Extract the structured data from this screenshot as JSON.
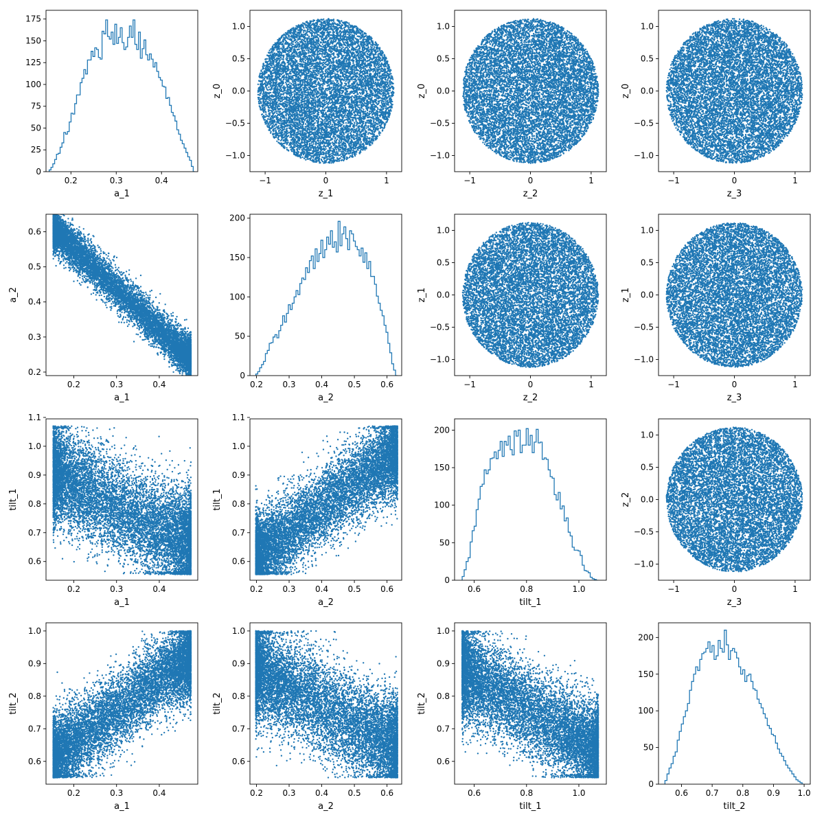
{
  "figure": {
    "grid_rows": 4,
    "grid_cols": 4,
    "marker_color": "#1f77b4",
    "axes_color": "#000000",
    "background": "#ffffff"
  },
  "chart_data": [
    {
      "type": "histogram",
      "row": 0,
      "col": 0,
      "xlabel": "a_1",
      "ylabel": "",
      "xlim": [
        0.145,
        0.48
      ],
      "ylim": [
        0,
        185
      ],
      "xticks": [
        0.2,
        0.3,
        0.4
      ],
      "xticklabels": [
        "0.2",
        "0.3",
        "0.4"
      ],
      "yticks": [
        0,
        25,
        50,
        75,
        100,
        125,
        150,
        175
      ],
      "yticklabels": [
        "0",
        "25",
        "50",
        "75",
        "100",
        "125",
        "150",
        "175"
      ],
      "bin_range": [
        0.152,
        0.474
      ],
      "counts": [
        2,
        5,
        9,
        14,
        20,
        21,
        28,
        33,
        45,
        43,
        46,
        57,
        67,
        66,
        78,
        88,
        88,
        102,
        107,
        117,
        112,
        128,
        128,
        138,
        132,
        142,
        140,
        131,
        129,
        161,
        158,
        174,
        155,
        152,
        160,
        146,
        169,
        147,
        154,
        165,
        148,
        140,
        143,
        154,
        167,
        154,
        174,
        146,
        140,
        160,
        130,
        141,
        151,
        134,
        128,
        135,
        129,
        120,
        125,
        115,
        108,
        105,
        98,
        97,
        84,
        85,
        76,
        68,
        64,
        58,
        48,
        43,
        36,
        32,
        27,
        22,
        17,
        13,
        6,
        0
      ]
    },
    {
      "type": "scatter",
      "row": 0,
      "col": 1,
      "xlabel": "z_1",
      "ylabel": "z_0",
      "xlim": [
        -1.25,
        1.25
      ],
      "ylim": [
        -1.25,
        1.25
      ],
      "xticks": [
        -1,
        0,
        1
      ],
      "xticklabels": [
        "−1",
        "0",
        "1"
      ],
      "yticks": [
        -1,
        -0.5,
        0,
        0.5,
        1
      ],
      "yticklabels": [
        "−1.0",
        "−0.5",
        "0.0",
        "0.5",
        "1.0"
      ],
      "n_points": 10000,
      "distribution": "uniform disk",
      "center": [
        0,
        0
      ],
      "radius": 1.12
    },
    {
      "type": "scatter",
      "row": 0,
      "col": 2,
      "xlabel": "z_2",
      "ylabel": "z_0",
      "xlim": [
        -1.25,
        1.25
      ],
      "ylim": [
        -1.25,
        1.25
      ],
      "xticks": [
        -1,
        0,
        1
      ],
      "xticklabels": [
        "−1",
        "0",
        "1"
      ],
      "yticks": [
        -1,
        -0.5,
        0,
        0.5,
        1
      ],
      "yticklabels": [
        "−1.0",
        "−0.5",
        "0.0",
        "0.5",
        "1.0"
      ],
      "n_points": 10000,
      "distribution": "uniform disk",
      "center": [
        0,
        0
      ],
      "radius": 1.12
    },
    {
      "type": "scatter",
      "row": 0,
      "col": 3,
      "xlabel": "z_3",
      "ylabel": "z_0",
      "xlim": [
        -1.25,
        1.25
      ],
      "ylim": [
        -1.25,
        1.25
      ],
      "xticks": [
        -1,
        0,
        1
      ],
      "xticklabels": [
        "−1",
        "0",
        "1"
      ],
      "yticks": [
        -1,
        -0.5,
        0,
        0.5,
        1
      ],
      "yticklabels": [
        "−1.0",
        "−0.5",
        "0.0",
        "0.5",
        "1.0"
      ],
      "n_points": 10000,
      "distribution": "uniform disk",
      "center": [
        0,
        0
      ],
      "radius": 1.12
    },
    {
      "type": "scatter",
      "row": 1,
      "col": 0,
      "xlabel": "a_1",
      "ylabel": "a_2",
      "xlim": [
        0.135,
        0.49
      ],
      "ylim": [
        0.19,
        0.65
      ],
      "xticks": [
        0.2,
        0.3,
        0.4
      ],
      "xticklabels": [
        "0.2",
        "0.3",
        "0.4"
      ],
      "yticks": [
        0.2,
        0.3,
        0.4,
        0.5,
        0.6
      ],
      "yticklabels": [
        "0.2",
        "0.3",
        "0.4",
        "0.5",
        "0.6"
      ],
      "n_points": 10000,
      "distribution": "narrow negative band",
      "x_range": [
        0.152,
        0.474
      ],
      "trend": [
        [
          0.16,
          0.6
        ],
        [
          0.47,
          0.24
        ]
      ],
      "spread": 0.028
    },
    {
      "type": "histogram",
      "row": 1,
      "col": 1,
      "xlabel": "a_2",
      "ylabel": "",
      "xlim": [
        0.18,
        0.645
      ],
      "ylim": [
        0,
        205
      ],
      "xticks": [
        0.2,
        0.3,
        0.4,
        0.5,
        0.6
      ],
      "xticklabels": [
        "0.2",
        "0.3",
        "0.4",
        "0.5",
        "0.6"
      ],
      "yticks": [
        0,
        50,
        100,
        150,
        200
      ],
      "yticklabels": [
        "0",
        "50",
        "100",
        "150",
        "200"
      ],
      "bin_range": [
        0.198,
        0.632
      ],
      "counts": [
        2,
        5,
        10,
        14,
        18,
        28,
        32,
        41,
        42,
        49,
        52,
        48,
        57,
        64,
        76,
        68,
        79,
        90,
        84,
        92,
        100,
        108,
        103,
        117,
        124,
        122,
        137,
        131,
        146,
        152,
        136,
        161,
        145,
        155,
        172,
        150,
        160,
        176,
        167,
        184,
        163,
        170,
        157,
        196,
        165,
        180,
        189,
        174,
        160,
        184,
        180,
        171,
        164,
        160,
        152,
        162,
        144,
        156,
        136,
        145,
        126,
        126,
        116,
        101,
        92,
        83,
        76,
        64,
        55,
        41,
        29,
        15,
        7,
        0
      ]
    },
    {
      "type": "scatter",
      "row": 1,
      "col": 2,
      "xlabel": "z_2",
      "ylabel": "z_1",
      "xlim": [
        -1.25,
        1.25
      ],
      "ylim": [
        -1.25,
        1.25
      ],
      "xticks": [
        -1,
        0,
        1
      ],
      "xticklabels": [
        "−1",
        "0",
        "1"
      ],
      "yticks": [
        -1,
        -0.5,
        0,
        0.5,
        1
      ],
      "yticklabels": [
        "−1.0",
        "−0.5",
        "0.0",
        "0.5",
        "1.0"
      ],
      "n_points": 10000,
      "distribution": "uniform disk",
      "center": [
        0,
        0
      ],
      "radius": 1.12
    },
    {
      "type": "scatter",
      "row": 1,
      "col": 3,
      "xlabel": "z_3",
      "ylabel": "z_1",
      "xlim": [
        -1.25,
        1.25
      ],
      "ylim": [
        -1.25,
        1.25
      ],
      "xticks": [
        -1,
        0,
        1
      ],
      "xticklabels": [
        "−1",
        "0",
        "1"
      ],
      "yticks": [
        -1,
        -0.5,
        0,
        0.5,
        1
      ],
      "yticklabels": [
        "−1.0",
        "−0.5",
        "0.0",
        "0.5",
        "1.0"
      ],
      "n_points": 10000,
      "distribution": "uniform disk",
      "center": [
        0,
        0
      ],
      "radius": 1.12
    },
    {
      "type": "scatter",
      "row": 2,
      "col": 0,
      "xlabel": "a_1",
      "ylabel": "tilt_1",
      "xlim": [
        0.135,
        0.49
      ],
      "ylim": [
        0.535,
        1.095
      ],
      "xticks": [
        0.2,
        0.3,
        0.4
      ],
      "xticklabels": [
        "0.2",
        "0.3",
        "0.4"
      ],
      "yticks": [
        0.6,
        0.7,
        0.8,
        0.9,
        1.0,
        1.1
      ],
      "yticklabels": [
        "0.6",
        "0.7",
        "0.8",
        "0.9",
        "1.0",
        "1.1"
      ],
      "n_points": 10000,
      "distribution": "negative ellipse",
      "x_range": [
        0.152,
        0.474
      ],
      "trend": [
        [
          0.16,
          0.9
        ],
        [
          0.47,
          0.66
        ]
      ],
      "spread": 0.085,
      "y_clip": [
        0.555,
        1.07
      ]
    },
    {
      "type": "scatter",
      "row": 2,
      "col": 1,
      "xlabel": "a_2",
      "ylabel": "tilt_1",
      "xlim": [
        0.18,
        0.645
      ],
      "ylim": [
        0.535,
        1.095
      ],
      "xticks": [
        0.2,
        0.3,
        0.4,
        0.5,
        0.6
      ],
      "xticklabels": [
        "0.2",
        "0.3",
        "0.4",
        "0.5",
        "0.6"
      ],
      "yticks": [
        0.6,
        0.7,
        0.8,
        0.9,
        1.0,
        1.1
      ],
      "yticklabels": [
        "0.6",
        "0.7",
        "0.8",
        "0.9",
        "1.0",
        "1.1"
      ],
      "n_points": 10000,
      "distribution": "positive ellipse",
      "x_range": [
        0.198,
        0.632
      ],
      "trend": [
        [
          0.2,
          0.62
        ],
        [
          0.63,
          0.98
        ]
      ],
      "spread": 0.07,
      "y_clip": [
        0.555,
        1.07
      ]
    },
    {
      "type": "histogram",
      "row": 2,
      "col": 2,
      "xlabel": "tilt_1",
      "ylabel": "",
      "xlim": [
        0.525,
        1.105
      ],
      "ylim": [
        0,
        215
      ],
      "xticks": [
        0.6,
        0.8,
        1.0
      ],
      "xticklabels": [
        "0.6",
        "0.8",
        "1.0"
      ],
      "yticks": [
        0,
        50,
        100,
        150,
        200
      ],
      "yticklabels": [
        "0",
        "50",
        "100",
        "150",
        "200"
      ],
      "bin_range": [
        0.554,
        1.074
      ],
      "counts": [
        5,
        14,
        25,
        30,
        51,
        66,
        72,
        94,
        108,
        125,
        128,
        147,
        142,
        147,
        162,
        163,
        171,
        162,
        173,
        185,
        165,
        185,
        180,
        192,
        174,
        167,
        199,
        192,
        200,
        170,
        180,
        180,
        202,
        180,
        193,
        170,
        184,
        201,
        183,
        184,
        161,
        163,
        161,
        147,
        138,
        136,
        114,
        107,
        117,
        95,
        99,
        79,
        83,
        64,
        59,
        44,
        40,
        40,
        39,
        33,
        20,
        13,
        12,
        10,
        4,
        2,
        1,
        0
      ]
    },
    {
      "type": "scatter",
      "row": 2,
      "col": 3,
      "xlabel": "z_3",
      "ylabel": "z_2",
      "xlim": [
        -1.25,
        1.25
      ],
      "ylim": [
        -1.25,
        1.25
      ],
      "xticks": [
        -1,
        0,
        1
      ],
      "xticklabels": [
        "−1",
        "0",
        "1"
      ],
      "yticks": [
        -1,
        -0.5,
        0,
        0.5,
        1
      ],
      "yticklabels": [
        "−1.0",
        "−0.5",
        "0.0",
        "0.5",
        "1.0"
      ],
      "n_points": 10000,
      "distribution": "uniform disk",
      "center": [
        0,
        0
      ],
      "radius": 1.12
    },
    {
      "type": "scatter",
      "row": 3,
      "col": 0,
      "xlabel": "a_1",
      "ylabel": "tilt_2",
      "xlim": [
        0.135,
        0.49
      ],
      "ylim": [
        0.53,
        1.025
      ],
      "xticks": [
        0.2,
        0.3,
        0.4
      ],
      "xticklabels": [
        "0.2",
        "0.3",
        "0.4"
      ],
      "yticks": [
        0.6,
        0.7,
        0.8,
        0.9,
        1.0
      ],
      "yticklabels": [
        "0.6",
        "0.7",
        "0.8",
        "0.9",
        "1.0"
      ],
      "n_points": 10000,
      "distribution": "positive ellipse",
      "x_range": [
        0.152,
        0.474
      ],
      "trend": [
        [
          0.16,
          0.62
        ],
        [
          0.47,
          0.92
        ]
      ],
      "spread": 0.06,
      "y_clip": [
        0.55,
        1.0
      ]
    },
    {
      "type": "scatter",
      "row": 3,
      "col": 1,
      "xlabel": "a_2",
      "ylabel": "tilt_2",
      "xlim": [
        0.18,
        0.645
      ],
      "ylim": [
        0.53,
        1.025
      ],
      "xticks": [
        0.2,
        0.3,
        0.4,
        0.5,
        0.6
      ],
      "xticklabels": [
        "0.2",
        "0.3",
        "0.4",
        "0.5",
        "0.6"
      ],
      "yticks": [
        0.6,
        0.7,
        0.8,
        0.9,
        1.0
      ],
      "yticklabels": [
        "0.6",
        "0.7",
        "0.8",
        "0.9",
        "1.0"
      ],
      "n_points": 10000,
      "distribution": "negative ellipse",
      "x_range": [
        0.198,
        0.632
      ],
      "trend": [
        [
          0.2,
          0.88
        ],
        [
          0.63,
          0.64
        ]
      ],
      "spread": 0.075,
      "y_clip": [
        0.55,
        1.0
      ]
    },
    {
      "type": "scatter",
      "row": 3,
      "col": 2,
      "xlabel": "tilt_1",
      "ylabel": "tilt_2",
      "xlim": [
        0.525,
        1.105
      ],
      "ylim": [
        0.53,
        1.025
      ],
      "xticks": [
        0.6,
        0.8,
        1.0
      ],
      "xticklabels": [
        "0.6",
        "0.8",
        "1.0"
      ],
      "yticks": [
        0.6,
        0.7,
        0.8,
        0.9,
        1.0
      ],
      "yticklabels": [
        "0.6",
        "0.7",
        "0.8",
        "0.9",
        "1.0"
      ],
      "n_points": 10000,
      "distribution": "negative ellipse",
      "x_range": [
        0.554,
        1.074
      ],
      "trend": [
        [
          0.57,
          0.87
        ],
        [
          1.07,
          0.63
        ]
      ],
      "spread": 0.07,
      "y_clip": [
        0.55,
        1.0
      ]
    },
    {
      "type": "histogram",
      "row": 3,
      "col": 3,
      "xlabel": "tilt_2",
      "ylabel": "",
      "xlim": [
        0.525,
        1.02
      ],
      "ylim": [
        0,
        220
      ],
      "xticks": [
        0.6,
        0.7,
        0.8,
        0.9,
        1.0
      ],
      "xticklabels": [
        "0.6",
        "0.7",
        "0.8",
        "0.9",
        "1.0"
      ],
      "yticks": [
        0,
        50,
        100,
        150,
        200
      ],
      "yticklabels": [
        "0",
        "50",
        "100",
        "150",
        "200"
      ],
      "bin_range": [
        0.546,
        1.0
      ],
      "counts": [
        5,
        14,
        22,
        28,
        38,
        44,
        60,
        72,
        82,
        92,
        100,
        110,
        128,
        140,
        150,
        160,
        155,
        170,
        178,
        180,
        185,
        194,
        180,
        189,
        170,
        175,
        196,
        185,
        180,
        210,
        190,
        170,
        182,
        185,
        180,
        172,
        160,
        150,
        156,
        140,
        148,
        150,
        140,
        130,
        128,
        116,
        110,
        104,
        96,
        90,
        80,
        76,
        68,
        66,
        56,
        48,
        42,
        38,
        32,
        26,
        22,
        18,
        14,
        10,
        6,
        4,
        2,
        0
      ]
    }
  ]
}
